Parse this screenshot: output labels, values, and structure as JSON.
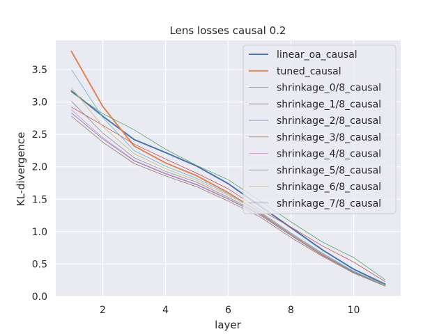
{
  "chart_data": {
    "type": "line",
    "title": "Lens losses causal 0.2",
    "xlabel": "layer",
    "ylabel": "KL-divergence",
    "xlim": [
      0.5,
      11.5
    ],
    "ylim": [
      0.0,
      3.95
    ],
    "xticks": [
      2,
      4,
      6,
      8,
      10
    ],
    "yticks": [
      0.0,
      0.5,
      1.0,
      1.5,
      2.0,
      2.5,
      3.0,
      3.5
    ],
    "grid": true,
    "legend_position": "top-right",
    "x": [
      1,
      2,
      3,
      4,
      5,
      6,
      7,
      8,
      9,
      10,
      11
    ],
    "series": [
      {
        "name": "linear_oa_causal",
        "color": "#4c72b0",
        "width": 2.0,
        "values": [
          3.17,
          2.78,
          2.42,
          2.22,
          2.01,
          1.74,
          1.4,
          1.06,
          0.72,
          0.42,
          0.19
        ]
      },
      {
        "name": "tuned_causal",
        "color": "#dd8452",
        "width": 2.0,
        "values": [
          3.78,
          2.93,
          2.32,
          2.06,
          1.86,
          1.6,
          1.3,
          0.95,
          0.64,
          0.38,
          0.17
        ]
      },
      {
        "name": "shrinkage_0/8_causal",
        "color": "#55a868",
        "width": 0.8,
        "values": [
          3.15,
          2.82,
          2.57,
          2.27,
          2.02,
          1.8,
          1.48,
          1.15,
          0.84,
          0.6,
          0.26
        ]
      },
      {
        "name": "shrinkage_1/8_causal",
        "color": "#c44e52",
        "width": 0.8,
        "values": [
          2.92,
          2.64,
          2.35,
          2.12,
          1.9,
          1.66,
          1.34,
          1.07,
          0.78,
          0.53,
          0.23
        ]
      },
      {
        "name": "shrinkage_2/8_causal",
        "color": "#8172b3",
        "width": 0.8,
        "values": [
          2.83,
          2.43,
          2.09,
          1.89,
          1.72,
          1.5,
          1.26,
          0.94,
          0.64,
          0.37,
          0.17
        ]
      },
      {
        "name": "shrinkage_3/8_causal",
        "color": "#937860",
        "width": 0.8,
        "values": [
          2.78,
          2.38,
          2.05,
          1.86,
          1.69,
          1.47,
          1.23,
          0.91,
          0.62,
          0.36,
          0.16
        ]
      },
      {
        "name": "shrinkage_4/8_causal",
        "color": "#da8bc3",
        "width": 0.8,
        "values": [
          2.88,
          2.45,
          2.1,
          1.9,
          1.73,
          1.51,
          1.27,
          0.95,
          0.65,
          0.38,
          0.17
        ]
      },
      {
        "name": "shrinkage_5/8_causal",
        "color": "#8c8c8c",
        "width": 0.8,
        "values": [
          3.01,
          2.52,
          2.14,
          1.93,
          1.76,
          1.53,
          1.28,
          0.96,
          0.66,
          0.38,
          0.17
        ]
      },
      {
        "name": "shrinkage_6/8_causal",
        "color": "#ccb974",
        "width": 0.8,
        "values": [
          3.22,
          2.62,
          2.2,
          1.97,
          1.79,
          1.56,
          1.3,
          0.97,
          0.66,
          0.39,
          0.17
        ]
      },
      {
        "name": "shrinkage_7/8_causal",
        "color": "#64b5cd",
        "width": 0.8,
        "values": [
          3.5,
          2.76,
          2.25,
          2.01,
          1.82,
          1.58,
          1.31,
          0.98,
          0.67,
          0.39,
          0.18
        ]
      }
    ]
  }
}
